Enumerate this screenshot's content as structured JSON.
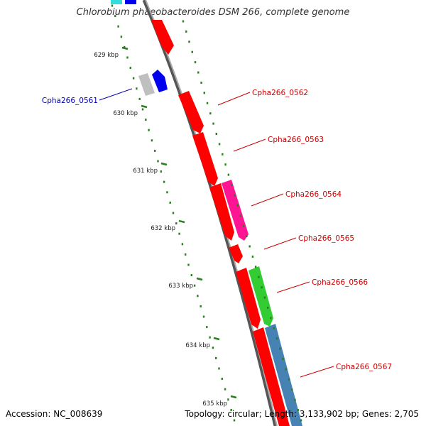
{
  "title": "Chlorobium phaeobacteroides DSM 266, complete genome",
  "footer": {
    "accession": "Accession: NC_008639",
    "summary": "Topology: circular; Length: 3,133,902 bp; Genes: 2,705"
  },
  "colors": {
    "backbone": "#888888",
    "tick": "#2a7f1f",
    "forward_label": "#cc0000",
    "reverse_label": "#0000aa"
  },
  "ticks": [
    "629 kbp",
    "630 kbp",
    "631 kbp",
    "632 kbp",
    "633 kbp",
    "634 kbp",
    "635 kbp"
  ],
  "genes": [
    {
      "id": "Cpha266_0561",
      "strand": "reverse",
      "color": "#0000ee",
      "labeled": true
    },
    {
      "id": "Cpha266_0562",
      "strand": "forward",
      "color": "#ff0000",
      "labeled": true
    },
    {
      "id": "Cpha266_0563",
      "strand": "forward",
      "color": "#ff0000",
      "labeled": true
    },
    {
      "id": "Cpha266_0564",
      "strand": "forward",
      "color": "#ff1493",
      "labeled": true
    },
    {
      "id": "Cpha266_0565",
      "strand": "forward",
      "color": "#ff0000",
      "labeled": true
    },
    {
      "id": "Cpha266_0566",
      "strand": "forward",
      "color": "#33cc33",
      "labeled": true
    },
    {
      "id": "Cpha266_0567",
      "strand": "forward",
      "color": "#4682b4",
      "labeled": true
    }
  ]
}
